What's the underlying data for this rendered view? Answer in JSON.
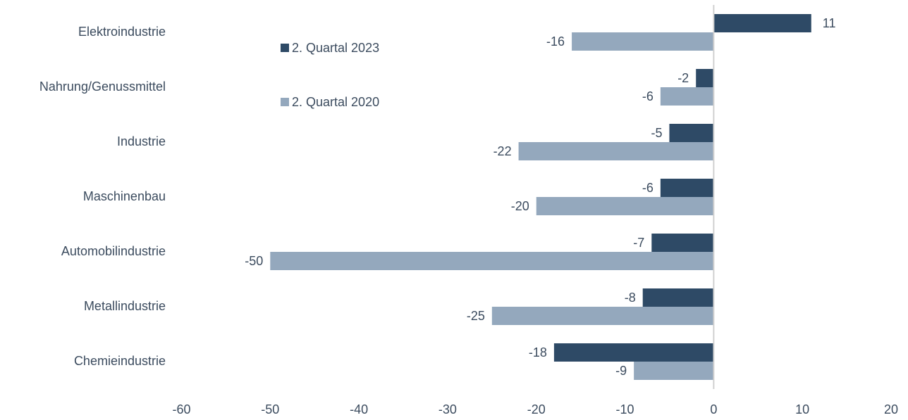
{
  "chart_data": {
    "type": "hbar",
    "categories": [
      "Elektroindustrie",
      "Nahrung/Genussmittel",
      "Industrie",
      "Maschinenbau",
      "Automobilindustrie",
      "Metallindustrie",
      "Chemieindustrie"
    ],
    "series": [
      {
        "name": "2. Quartal 2023",
        "color": "#2e4a66",
        "values": [
          11,
          -2,
          -5,
          -6,
          -7,
          -8,
          -18
        ]
      },
      {
        "name": "2. Quartal 2020",
        "color": "#94a8bd",
        "values": [
          -16,
          -6,
          -22,
          -20,
          -50,
          -25,
          -9
        ]
      }
    ],
    "xlim": [
      -60,
      20
    ],
    "xticks": [
      -60,
      -50,
      -40,
      -30,
      -20,
      -10,
      0,
      10,
      20
    ]
  }
}
